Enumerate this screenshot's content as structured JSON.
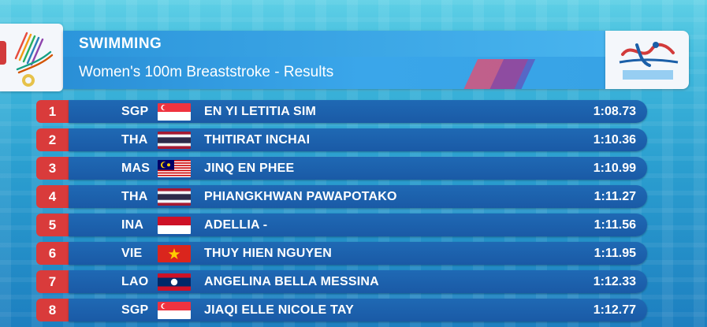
{
  "header": {
    "sport": "SWIMMING",
    "event": "Women's 100m Breaststroke - Results"
  },
  "colors": {
    "rank_red": "#d93b3b",
    "row_blue": "#1f69b4",
    "header_blue": "#3aa6ea"
  },
  "results": [
    {
      "rank": "1",
      "country": "SGP",
      "flag": "flag-sgp-icon",
      "athlete": "EN YI LETITIA SIM",
      "time": "1:08.73"
    },
    {
      "rank": "2",
      "country": "THA",
      "flag": "flag-tha-icon",
      "athlete": "THITIRAT INCHAI",
      "time": "1:10.36"
    },
    {
      "rank": "3",
      "country": "MAS",
      "flag": "flag-mas-icon",
      "athlete": "JINQ EN PHEE",
      "time": "1:10.99"
    },
    {
      "rank": "4",
      "country": "THA",
      "flag": "flag-tha-icon",
      "athlete": "PHIANGKHWAN PAWAPOTAKO",
      "time": "1:11.27"
    },
    {
      "rank": "5",
      "country": "INA",
      "flag": "flag-ina-icon",
      "athlete": "ADELLIA -",
      "time": "1:11.56"
    },
    {
      "rank": "6",
      "country": "VIE",
      "flag": "flag-vie-icon",
      "athlete": "THUY HIEN NGUYEN",
      "time": "1:11.95"
    },
    {
      "rank": "7",
      "country": "LAO",
      "flag": "flag-lao-icon",
      "athlete": "ANGELINA BELLA MESSINA",
      "time": "1:12.33"
    },
    {
      "rank": "8",
      "country": "SGP",
      "flag": "flag-sgp-icon",
      "athlete": "JIAQI ELLE NICOLE TAY",
      "time": "1:12.77"
    }
  ]
}
